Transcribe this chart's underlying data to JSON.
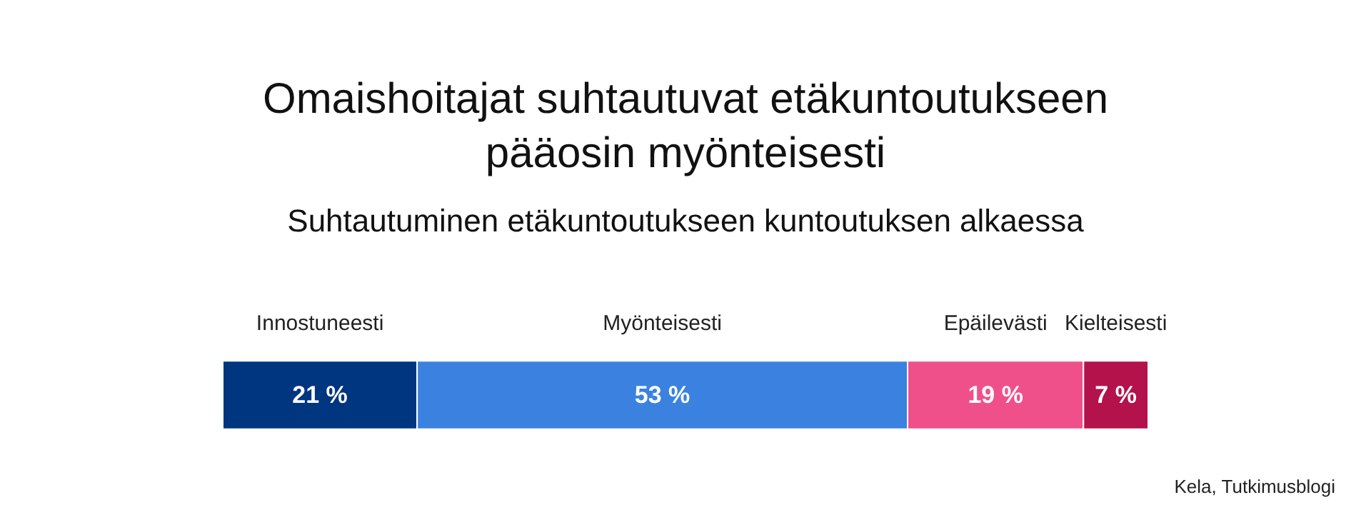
{
  "chart_data": {
    "type": "bar",
    "orientation": "horizontal",
    "stacked": true,
    "title": "Omaishoitajat suhtautuvat etäkuntoutukseen\npääosin myönteisesti",
    "subtitle": "Suhtautuminen etäkuntoutukseen kuntoutuksen alkaessa",
    "categories": [
      null
    ],
    "series": [
      {
        "name": "Innostuneesti",
        "color": "#003580",
        "values": [
          21
        ],
        "value_labels": [
          "21 %"
        ]
      },
      {
        "name": "Myönteisesti",
        "color": "#3b82e0",
        "values": [
          53
        ],
        "value_labels": [
          "53 %"
        ]
      },
      {
        "name": "Epäilevästi",
        "color": "#f0508a",
        "values": [
          19
        ],
        "value_labels": [
          "19 %"
        ]
      },
      {
        "name": "Kielteisesti",
        "color": "#b3124a",
        "values": [
          7
        ],
        "value_labels": [
          "7 %"
        ]
      }
    ],
    "annotations": [
      "Kela, Tutkimusblogi"
    ]
  }
}
